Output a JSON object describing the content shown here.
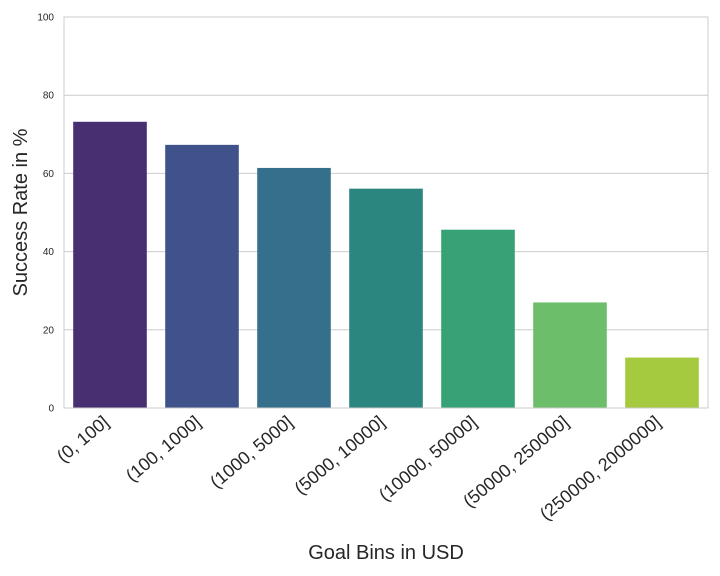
{
  "chart_data": {
    "type": "bar",
    "categories": [
      "(0, 100]",
      "(100, 1000]",
      "(1000, 5000]",
      "(5000, 10000]",
      "(10000, 50000]",
      "(50000, 250000]",
      "(250000, 2000000]"
    ],
    "values": [
      73.2,
      67.3,
      61.4,
      56.1,
      45.6,
      27.0,
      12.9
    ],
    "colors": [
      "#482f72",
      "#40528a",
      "#366f8b",
      "#2c8680",
      "#36a276",
      "#6cbe6a",
      "#a5c93f"
    ],
    "xlabel": "Goal Bins in USD",
    "ylabel": "Success Rate in %",
    "ylim": [
      0,
      100
    ],
    "yticks": [
      0,
      20,
      40,
      60,
      80,
      100
    ],
    "grid": "horizontal",
    "legend": "none"
  }
}
